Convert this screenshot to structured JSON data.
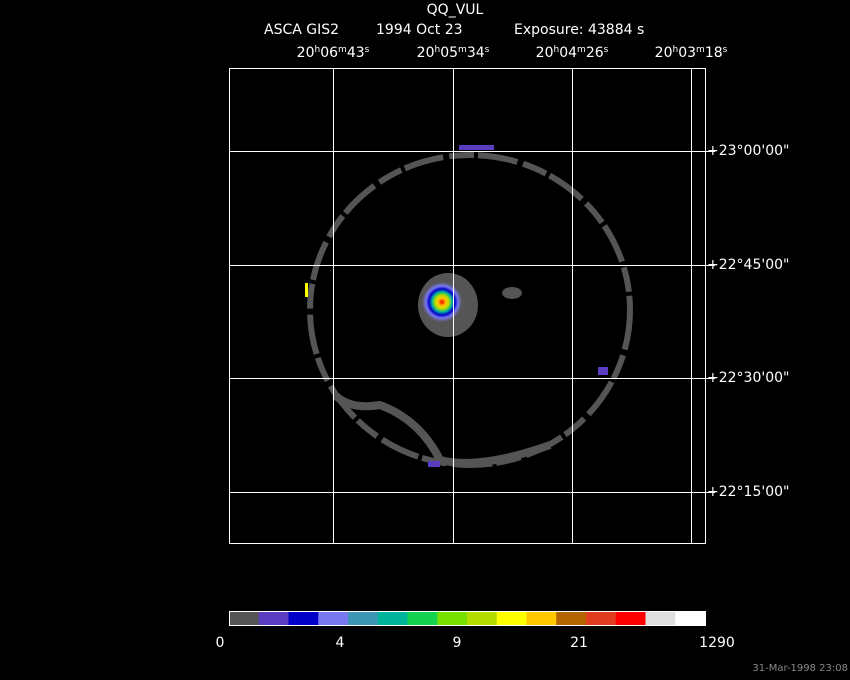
{
  "header": {
    "title": "QQ_VUL",
    "instrument": "ASCA GIS2",
    "date": "1994 Oct 23",
    "exposure": "Exposure: 43884 s"
  },
  "ra_labels": [
    [
      "20",
      "h",
      "06",
      "m",
      "43",
      "s"
    ],
    [
      "20",
      "h",
      "05",
      "m",
      "34",
      "s"
    ],
    [
      "20",
      "h",
      "04",
      "m",
      "26",
      "s"
    ],
    [
      "20",
      "h",
      "03",
      "m",
      "18",
      "s"
    ]
  ],
  "dec_labels": [
    "+23°00'00\"",
    "+22°45'00\"",
    "+22°30'00\"",
    "+22°15'00\""
  ],
  "colorbar": {
    "colors": [
      "#555555",
      "#5a3cc0",
      "#0000c8",
      "#7878f0",
      "#3c96b4",
      "#00b49b",
      "#14d250",
      "#78e000",
      "#b4dc00",
      "#ffff00",
      "#ffc800",
      "#b46400",
      "#e03c20",
      "#ff0000",
      "#e0e0e0",
      "#ffffff"
    ],
    "labels": [
      "0",
      "4",
      "9",
      "21",
      "1290"
    ]
  },
  "footer": "31-Mar-1998 23:08"
}
